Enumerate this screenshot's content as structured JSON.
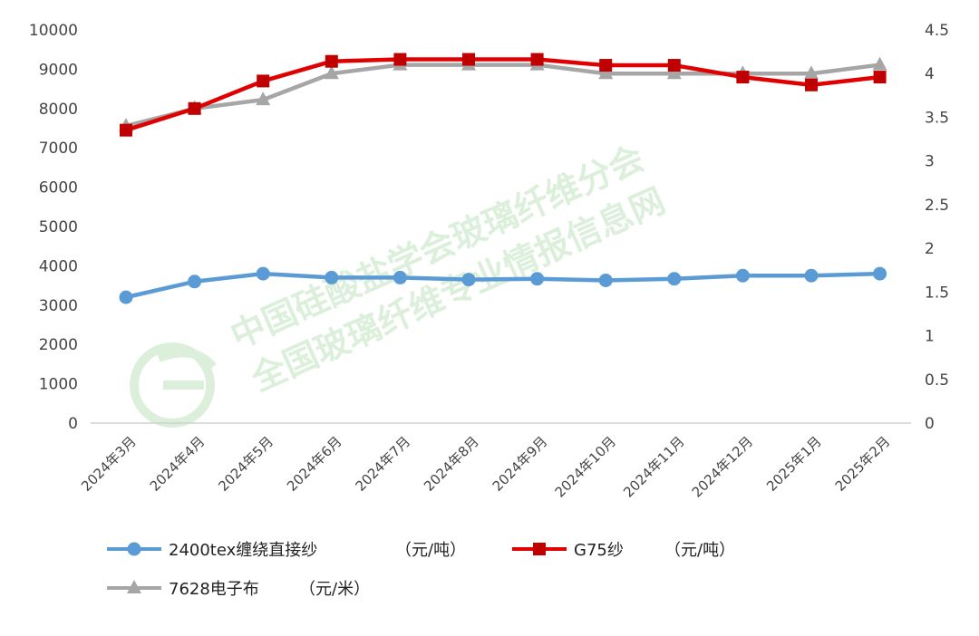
{
  "chart_data": {
    "type": "line",
    "categories": [
      "2024年3月",
      "2024年4月",
      "2024年5月",
      "2024年6月",
      "2024年7月",
      "2024年8月",
      "2024年9月",
      "2024年10月",
      "2024年11月",
      "2024年12月",
      "2025年1月",
      "2025年2月"
    ],
    "y_left": {
      "ticks": [
        0,
        1000,
        2000,
        3000,
        4000,
        5000,
        6000,
        7000,
        8000,
        9000,
        10000
      ],
      "ylim": [
        0,
        10000
      ]
    },
    "y_right": {
      "ticks": [
        "0",
        "0.5",
        "1",
        "1.5",
        "2",
        "2.5",
        "3",
        "3.5",
        "4",
        "4.5"
      ],
      "ylim": [
        0,
        4.5
      ]
    },
    "series": [
      {
        "name": "2400tex缠绕直接纱",
        "unit": "（元/吨）",
        "axis": "left",
        "color": "#5b9bd5",
        "marker": "circle",
        "values": [
          3200,
          3600,
          3800,
          3700,
          3700,
          3650,
          3670,
          3630,
          3670,
          3750,
          3750,
          3800
        ]
      },
      {
        "name": "G75纱",
        "unit": "（元/吨）",
        "axis": "left",
        "color": "#e00000",
        "marker": "square",
        "values": [
          7450,
          8000,
          8700,
          9200,
          9250,
          9250,
          9250,
          9100,
          9100,
          8800,
          8600,
          8800
        ]
      },
      {
        "name": "7628电子布",
        "unit": "（元/米）",
        "axis": "right",
        "color": "#a6a6a6",
        "marker": "triangle",
        "values": [
          3.4,
          3.6,
          3.7,
          4.0,
          4.1,
          4.1,
          4.1,
          4.0,
          4.0,
          4.0,
          4.0,
          4.1
        ]
      }
    ],
    "grid": false,
    "legend_position": "bottom"
  },
  "watermark": {
    "line1": "中国硅酸盐学会玻璃纤维分会",
    "line2": "全国玻璃纤维专业情报信息网"
  }
}
